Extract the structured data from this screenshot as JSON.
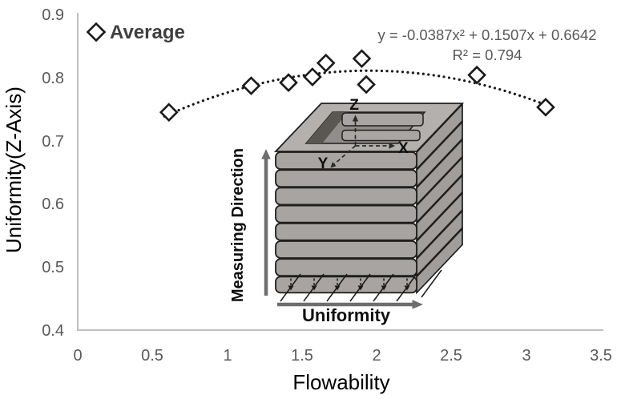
{
  "chart_data": {
    "type": "scatter",
    "title": "",
    "xlabel": "Flowability",
    "ylabel": "Uniformity(Z-Axis)",
    "xlim": [
      0,
      3.5
    ],
    "ylim": [
      0.4,
      0.9
    ],
    "grid": false,
    "legend_position": "top-left-inside",
    "x_tick_labels": [
      "0",
      "0.5",
      "1",
      "1.5",
      "2",
      "2.5",
      "3",
      "3.5"
    ],
    "y_tick_labels": [
      "0.9",
      "0.8",
      "0.7",
      "0.6",
      "0.5",
      "0.4"
    ],
    "series": [
      {
        "name": "Average",
        "marker": "open-diamond",
        "points": [
          [
            0.61,
            0.745
          ],
          [
            1.16,
            0.787
          ],
          [
            1.41,
            0.792
          ],
          [
            1.57,
            0.801
          ],
          [
            1.66,
            0.823
          ],
          [
            1.9,
            0.83
          ],
          [
            1.93,
            0.789
          ],
          [
            2.67,
            0.804
          ],
          [
            3.13,
            0.753
          ]
        ]
      }
    ],
    "trendline": {
      "type": "polynomial",
      "degree": 2,
      "a": -0.0387,
      "b": 0.1507,
      "c": 0.6642,
      "style": "dotted",
      "x_start": 0.58,
      "x_end": 3.13
    },
    "annotations": {
      "equation": "y = -0.0387x² + 0.1507x + 0.6642",
      "r_squared": "R² = 0.794"
    }
  },
  "legend": {
    "label": "Average"
  },
  "inset": {
    "description": "layered cube schematic",
    "layer_count": 8,
    "axis_z": "Z",
    "axis_x": "X",
    "axis_y": "Y",
    "left_arrow_label": "Measuring Direction",
    "bottom_arrow_label": "Uniformity"
  },
  "colors": {
    "marker": "#1a1a1a",
    "trendline": "#1a1a1a",
    "tick_text": "#595959",
    "annotation_text": "#595959",
    "legend_text": "#3f3f3f",
    "axis_title_text": "#000000",
    "axis_line": "#bfbfbf",
    "layer_fill": "#a7a4a1",
    "layer_side_fill": "#a09d9a",
    "top_face_fill": "#b3b0ad",
    "cavity_floor_fill": "#908d8a",
    "cavity_wall_fill": "#5a5752",
    "outline": "#1f1f1f",
    "arrow_gray": "#6e6e6e"
  }
}
